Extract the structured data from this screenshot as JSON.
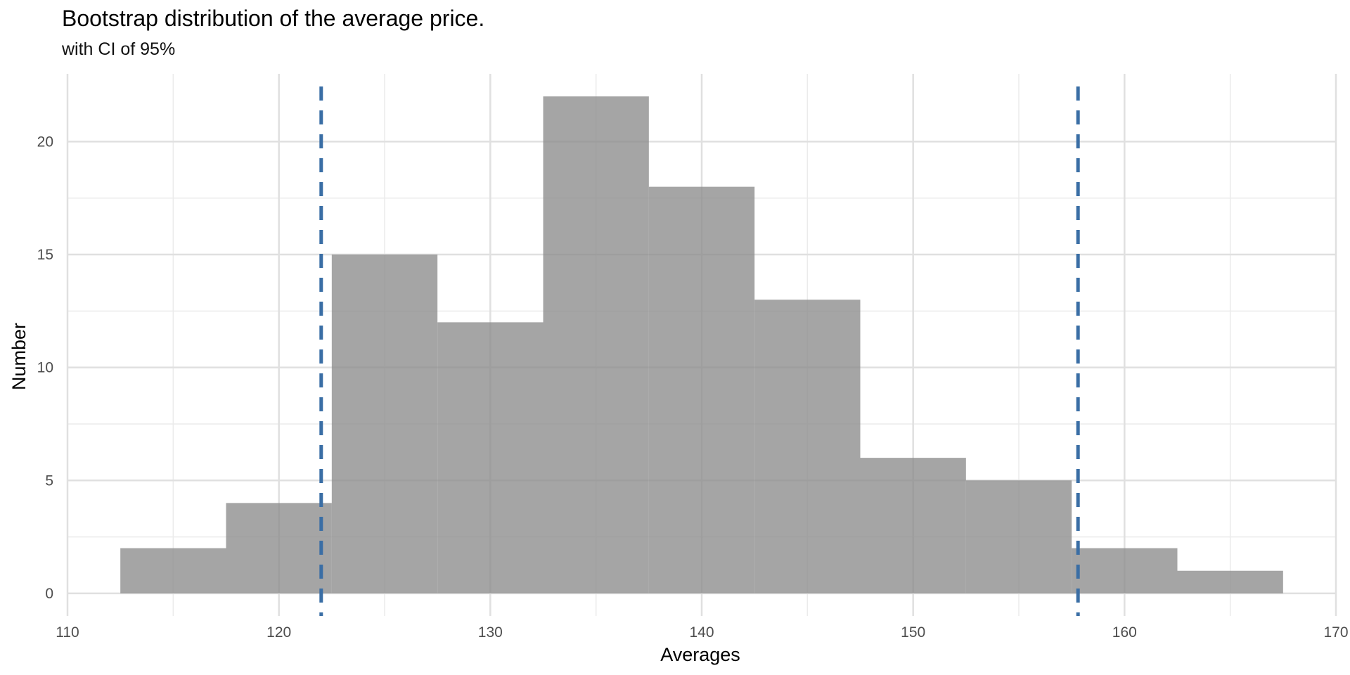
{
  "chart_data": {
    "type": "bar",
    "title": "Bootstrap distribution of the average price.",
    "subtitle": "with CI of 95%",
    "xlabel": "Averages",
    "ylabel": "Number",
    "xlim": [
      110,
      170
    ],
    "ylim": [
      -1,
      23
    ],
    "x_ticks": [
      110,
      120,
      130,
      140,
      150,
      160,
      170
    ],
    "y_ticks": [
      0,
      5,
      10,
      15,
      20
    ],
    "grid": true,
    "bins": [
      {
        "from": 112.5,
        "to": 117.5,
        "count": 2
      },
      {
        "from": 117.5,
        "to": 122.5,
        "count": 4
      },
      {
        "from": 122.5,
        "to": 127.5,
        "count": 15
      },
      {
        "from": 127.5,
        "to": 132.5,
        "count": 12
      },
      {
        "from": 132.5,
        "to": 137.5,
        "count": 22
      },
      {
        "from": 137.5,
        "to": 142.5,
        "count": 18
      },
      {
        "from": 142.5,
        "to": 147.5,
        "count": 13
      },
      {
        "from": 147.5,
        "to": 152.5,
        "count": 6
      },
      {
        "from": 152.5,
        "to": 157.5,
        "count": 5
      },
      {
        "from": 157.5,
        "to": 162.5,
        "count": 2
      },
      {
        "from": 162.5,
        "to": 167.5,
        "count": 1
      }
    ],
    "ci_lines": [
      122.0,
      157.8
    ],
    "bar_color": "#8c8c8c",
    "ci_color": "#3a6ea5"
  }
}
